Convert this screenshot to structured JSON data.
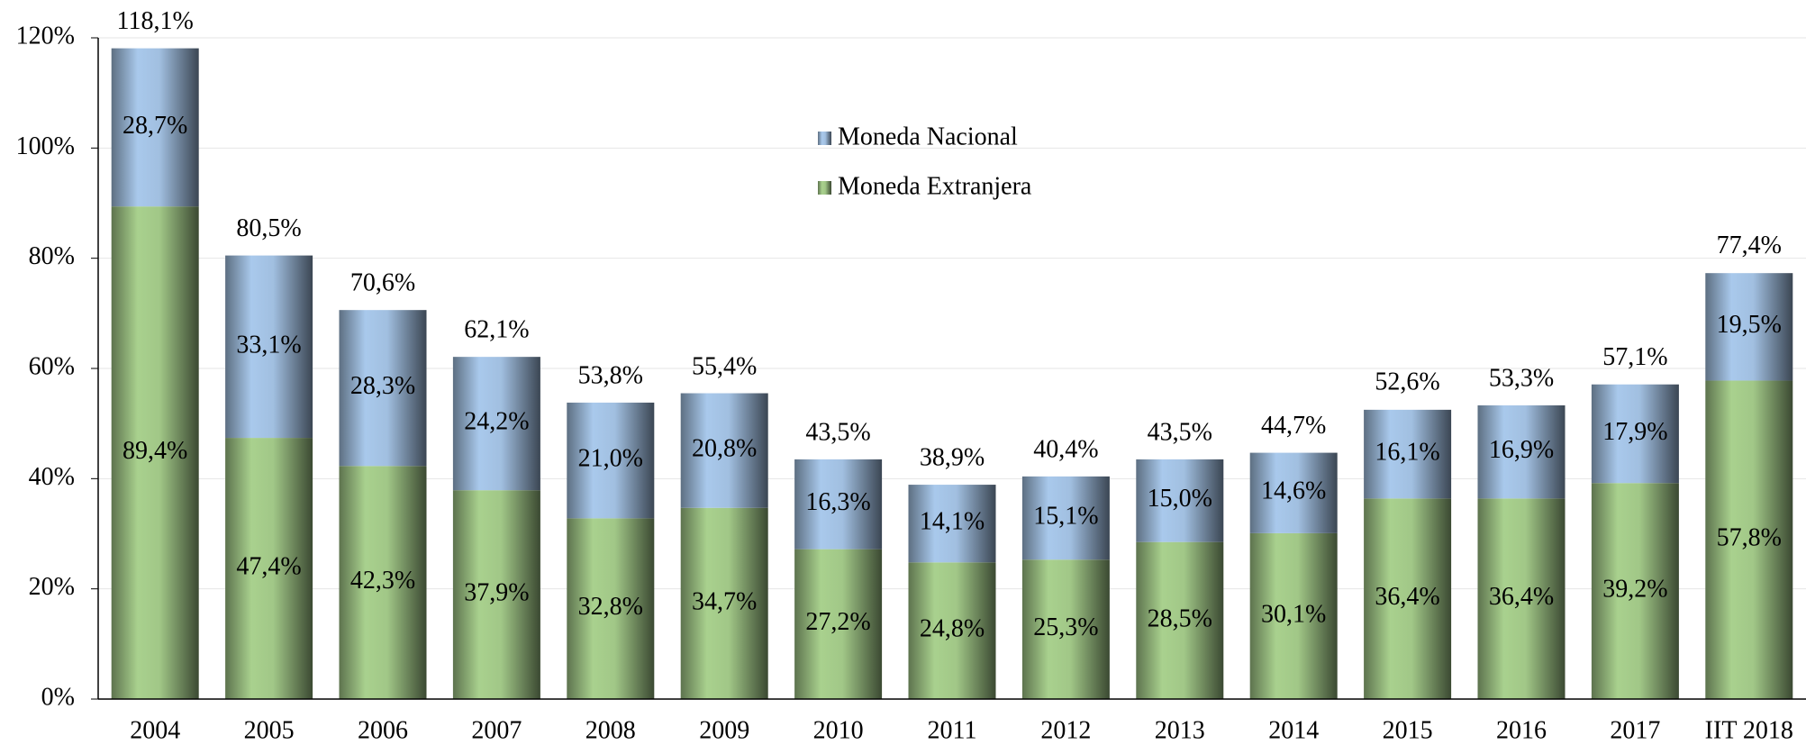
{
  "chart_data": {
    "type": "stacked-bar",
    "categories": [
      "2004",
      "2005",
      "2006",
      "2007",
      "2008",
      "2009",
      "2010",
      "2011",
      "2012",
      "2013",
      "2014",
      "2015",
      "2016",
      "2017",
      "IIT 2018"
    ],
    "series": [
      {
        "name": "Moneda Extranjera",
        "color": "#a9d18e",
        "values": [
          89.4,
          47.4,
          42.3,
          37.9,
          32.8,
          34.7,
          27.2,
          24.8,
          25.3,
          28.5,
          30.1,
          36.4,
          36.4,
          39.2,
          57.8
        ],
        "value_labels": [
          "89,4%",
          "47,4%",
          "42,3%",
          "37,9%",
          "32,8%",
          "34,7%",
          "27,2%",
          "24,8%",
          "25,3%",
          "28,5%",
          "30,1%",
          "36,4%",
          "36,4%",
          "39,2%",
          "57,8%"
        ]
      },
      {
        "name": "Moneda Nacional",
        "color": "#a9c9ec",
        "values": [
          28.7,
          33.1,
          28.3,
          24.2,
          21.0,
          20.8,
          16.3,
          14.1,
          15.1,
          15.0,
          14.6,
          16.1,
          16.9,
          17.9,
          19.5
        ],
        "value_labels": [
          "28,7%",
          "33,1%",
          "28,3%",
          "24,2%",
          "21,0%",
          "20,8%",
          "16,3%",
          "14,1%",
          "15,1%",
          "15,0%",
          "14,6%",
          "16,1%",
          "16,9%",
          "17,9%",
          "19,5%"
        ]
      }
    ],
    "totals": [
      118.1,
      80.5,
      70.6,
      62.1,
      53.8,
      55.4,
      43.5,
      38.9,
      40.4,
      43.5,
      44.7,
      52.6,
      53.3,
      57.1,
      77.4
    ],
    "total_labels": [
      "118,1%",
      "80,5%",
      "70,6%",
      "62,1%",
      "53,8%",
      "55,4%",
      "43,5%",
      "38,9%",
      "40,4%",
      "43,5%",
      "44,7%",
      "52,6%",
      "53,3%",
      "57,1%",
      "77,4%"
    ],
    "ylim": [
      0,
      120
    ],
    "yticks": [
      {
        "value": 0,
        "label": "0%"
      },
      {
        "value": 20,
        "label": "20%"
      },
      {
        "value": 40,
        "label": "40%"
      },
      {
        "value": 60,
        "label": "60%"
      },
      {
        "value": 80,
        "label": "80%"
      },
      {
        "value": 100,
        "label": "100%"
      },
      {
        "value": 120,
        "label": "120%"
      }
    ],
    "grid": true,
    "legend": "top-center"
  }
}
